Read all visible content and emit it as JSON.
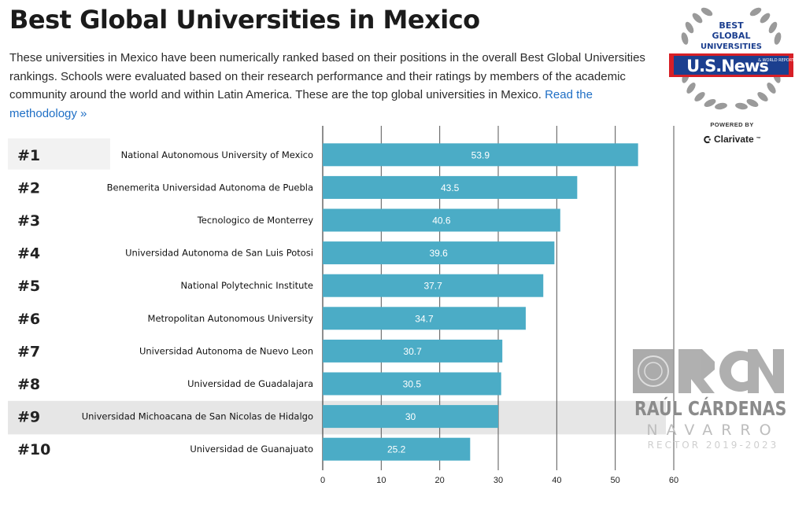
{
  "header": {
    "title": "Best Global Universities in Mexico",
    "intro": "These universities in Mexico have been numerically ranked based on their positions in the overall Best Global Universities rankings. Schools were evaluated based on their research performance and their ratings by members of the academic community around the world and within Latin America. These are the top global universities in Mexico.",
    "read_more": "Read the methodology »"
  },
  "badge": {
    "line1": "BEST",
    "line2": "GLOBAL",
    "line3": "UNIVERSITIES",
    "brand": "U.S.News",
    "brand_sub": "& WORLD REPORT",
    "powered_by": "POWERED BY",
    "partner": "Clarivate",
    "trademark": "™"
  },
  "watermark": {
    "name": "RAÚL CÁRDENAS",
    "surname": "NAVARRO",
    "role": "RECTOR 2019-2023"
  },
  "colors": {
    "bar": "#4bacc6",
    "highlight_row": "#e6e6e6",
    "link": "#1f6fc5",
    "brand_blue": "#1c3f8f",
    "brand_red": "#d71f26"
  },
  "chart_data": {
    "type": "bar",
    "orientation": "horizontal",
    "ranks": [
      "#1",
      "#2",
      "#3",
      "#4",
      "#5",
      "#6",
      "#7",
      "#8",
      "#9",
      "#10"
    ],
    "categories": [
      "National Autonomous University of Mexico",
      "Benemerita Universidad Autonoma de Puebla",
      "Tecnologico de Monterrey",
      "Universidad Autonoma de San Luis Potosi",
      "National Polytechnic Institute",
      "Metropolitan Autonomous University",
      "Universidad Autonoma de Nuevo Leon",
      "Universidad de Guadalajara",
      "Universidad Michoacana de San Nicolas de Hidalgo",
      "Universidad de Guanajuato"
    ],
    "values": [
      53.9,
      43.5,
      40.6,
      39.6,
      37.7,
      34.7,
      30.7,
      30.5,
      30,
      25.2
    ],
    "value_labels": [
      "53.9",
      "43.5",
      "40.6",
      "39.6",
      "37.7",
      "34.7",
      "30.7",
      "30.5",
      "30",
      "25.2"
    ],
    "xticks": [
      0,
      10,
      20,
      30,
      40,
      50,
      60
    ],
    "xtick_labels": [
      "0",
      "10",
      "20",
      "30",
      "40",
      "50",
      "60"
    ],
    "xlim": [
      0,
      60
    ],
    "grid": "vertical",
    "highlighted_index": 8
  }
}
